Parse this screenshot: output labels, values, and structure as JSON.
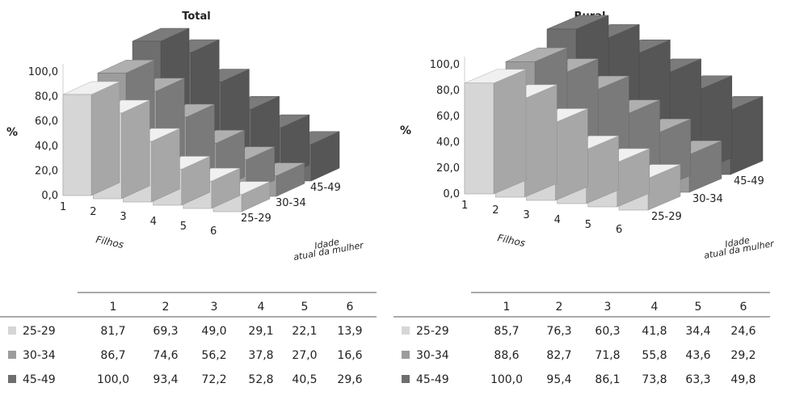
{
  "colors": {
    "25-29": "#d6d6d6",
    "30-34": "#9c9c9c",
    "45-49": "#6e6e6e"
  },
  "chart_data": [
    {
      "type": "bar",
      "title": "Total",
      "ylabel": "%",
      "xlabel": "Filhos",
      "zlabel_line1": "Idade",
      "zlabel_line2": "atual da mulher",
      "ylim": [
        0,
        100
      ],
      "yticks": [
        "0,0",
        "20,0",
        "40,0",
        "60,0",
        "80,0",
        "100,0"
      ],
      "categories": [
        "1",
        "2",
        "3",
        "4",
        "5",
        "6"
      ],
      "series": [
        {
          "name": "25-29",
          "values": [
            81.7,
            69.3,
            49.0,
            29.1,
            22.1,
            13.9
          ],
          "labels": [
            "81,7",
            "69,3",
            "49,0",
            "29,1",
            "22,1",
            "13,9"
          ]
        },
        {
          "name": "30-34",
          "values": [
            86.7,
            74.6,
            56.2,
            37.8,
            27.0,
            16.6
          ],
          "labels": [
            "86,7",
            "74,6",
            "56,2",
            "37,8",
            "27,0",
            "16,6"
          ]
        },
        {
          "name": "45-49",
          "values": [
            100.0,
            93.4,
            72.2,
            52.8,
            40.5,
            29.6
          ],
          "labels": [
            "100,0",
            "93,4",
            "72,2",
            "52,8",
            "40,5",
            "29,6"
          ]
        }
      ]
    },
    {
      "type": "bar",
      "title": "Rural",
      "ylabel": "%",
      "xlabel": "Filhos",
      "zlabel_line1": "Idade",
      "zlabel_line2": "atual da mulher",
      "ylim": [
        0,
        100
      ],
      "yticks": [
        "0,0",
        "20,0",
        "40,0",
        "60,0",
        "80,0",
        "100,0"
      ],
      "categories": [
        "1",
        "2",
        "3",
        "4",
        "5",
        "6"
      ],
      "series": [
        {
          "name": "25-29",
          "values": [
            85.7,
            76.3,
            60.3,
            41.8,
            34.4,
            24.6
          ],
          "labels": [
            "85,7",
            "76,3",
            "60,3",
            "41,8",
            "34,4",
            "24,6"
          ]
        },
        {
          "name": "30-34",
          "values": [
            88.6,
            82.7,
            71.8,
            55.8,
            43.6,
            29.2
          ],
          "labels": [
            "88,6",
            "82,7",
            "71,8",
            "55,8",
            "43,6",
            "29,2"
          ]
        },
        {
          "name": "45-49",
          "values": [
            100.0,
            95.4,
            86.1,
            73.8,
            63.3,
            49.8
          ],
          "labels": [
            "100,0",
            "95,4",
            "86,1",
            "73,8",
            "63,3",
            "49,8"
          ]
        }
      ]
    }
  ]
}
